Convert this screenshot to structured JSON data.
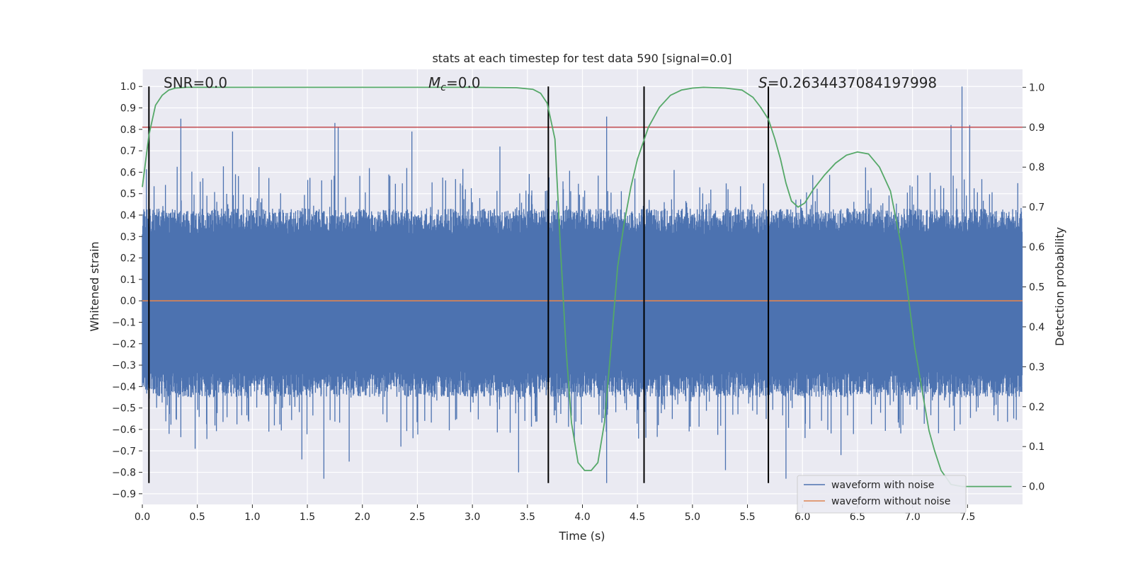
{
  "chart_data": {
    "type": "line",
    "title": "stats at each timestep for test data 590 [signal=0.0]",
    "xlabel": "Time (s)",
    "ylabel": "Whitened strain",
    "ylabel_right": "Detection probability",
    "xlim": [
      0.0,
      8.0
    ],
    "ylim": [
      -0.95,
      1.08
    ],
    "ylim_right": [
      -0.045,
      1.045
    ],
    "grid": true,
    "x_ticks": [
      "0.0",
      "0.5",
      "1.0",
      "1.5",
      "2.0",
      "2.5",
      "3.0",
      "3.5",
      "4.0",
      "4.5",
      "5.0",
      "5.5",
      "6.0",
      "6.5",
      "7.0",
      "7.5"
    ],
    "y_ticks": [
      "1.0",
      "0.9",
      "0.8",
      "0.7",
      "0.6",
      "0.5",
      "0.4",
      "0.3",
      "0.2",
      "0.1",
      "0.0",
      "-0.1",
      "-0.2",
      "-0.3",
      "-0.4",
      "-0.5",
      "-0.6",
      "-0.7",
      "-0.8",
      "-0.9"
    ],
    "y_ticks_right": [
      "1.0",
      "0.9",
      "0.8",
      "0.7",
      "0.6",
      "0.5",
      "0.4",
      "0.3",
      "0.2",
      "0.1",
      "0.0"
    ],
    "annotations": {
      "snr": "SNR=0.0",
      "mc_symbol": "M",
      "mc_sub": "c",
      "mc_value": "=0.0",
      "s_symbol": "S",
      "s_value": "=0.2634437084197998"
    },
    "threshold_right": 0.9,
    "threshold_color": "#c44e52",
    "vertical_lines_x": [
      0.06,
      3.69,
      4.56,
      5.69
    ],
    "vertical_lines_range": [
      -0.85,
      1.0
    ],
    "colors": {
      "noise": "#4c72b0",
      "clean": "#dd8452",
      "prob": "#55a868",
      "background": "#eaeaf2"
    },
    "series": [
      {
        "name": "waveform with noise",
        "kind": "noise",
        "envelope_pos": 0.43,
        "envelope_neg": -0.45,
        "peaks": [
          [
            0.35,
            0.85
          ],
          [
            0.82,
            0.79
          ],
          [
            1.75,
            0.83
          ],
          [
            1.78,
            0.81
          ],
          [
            2.45,
            0.79
          ],
          [
            4.22,
            0.86
          ],
          [
            7.45,
            1.0
          ],
          [
            7.35,
            0.82
          ],
          [
            7.52,
            0.82
          ],
          [
            3.25,
            0.72
          ],
          [
            0.48,
            -0.69
          ],
          [
            1.45,
            -0.74
          ],
          [
            1.65,
            -0.83
          ],
          [
            1.88,
            -0.75
          ],
          [
            3.42,
            -0.8
          ],
          [
            4.22,
            -0.85
          ],
          [
            5.3,
            -0.79
          ],
          [
            5.85,
            -0.83
          ],
          [
            6.35,
            -0.72
          ],
          [
            2.35,
            -0.68
          ]
        ]
      },
      {
        "name": "waveform without noise",
        "kind": "clean",
        "x": [
          0.0,
          8.0
        ],
        "y": [
          0.0,
          0.0
        ]
      },
      {
        "name": "Detection probability",
        "kind": "prob",
        "axis": "right",
        "x": [
          0.0,
          0.06,
          0.12,
          0.18,
          0.24,
          0.3,
          0.4,
          0.6,
          1.0,
          2.0,
          3.0,
          3.4,
          3.55,
          3.62,
          3.68,
          3.75,
          3.8,
          3.85,
          3.9,
          3.96,
          4.02,
          4.08,
          4.14,
          4.2,
          4.26,
          4.32,
          4.38,
          4.44,
          4.5,
          4.6,
          4.7,
          4.8,
          4.9,
          5.0,
          5.1,
          5.3,
          5.45,
          5.55,
          5.62,
          5.69,
          5.75,
          5.8,
          5.85,
          5.9,
          5.96,
          6.02,
          6.1,
          6.2,
          6.3,
          6.4,
          6.5,
          6.6,
          6.7,
          6.8,
          6.9,
          6.96,
          7.02,
          7.1,
          7.15,
          7.2,
          7.26,
          7.35,
          7.45,
          7.9
        ],
        "y": [
          0.75,
          0.88,
          0.955,
          0.98,
          0.993,
          0.998,
          1.0,
          1.0,
          1.0,
          1.0,
          1.0,
          0.999,
          0.995,
          0.985,
          0.96,
          0.87,
          0.6,
          0.35,
          0.16,
          0.06,
          0.04,
          0.04,
          0.06,
          0.16,
          0.35,
          0.55,
          0.66,
          0.75,
          0.82,
          0.9,
          0.95,
          0.98,
          0.993,
          0.998,
          1.0,
          0.998,
          0.993,
          0.975,
          0.95,
          0.92,
          0.87,
          0.82,
          0.76,
          0.715,
          0.7,
          0.71,
          0.745,
          0.78,
          0.81,
          0.83,
          0.838,
          0.833,
          0.8,
          0.74,
          0.6,
          0.48,
          0.35,
          0.22,
          0.14,
          0.09,
          0.04,
          0.005,
          0.0,
          0.0
        ]
      }
    ]
  }
}
